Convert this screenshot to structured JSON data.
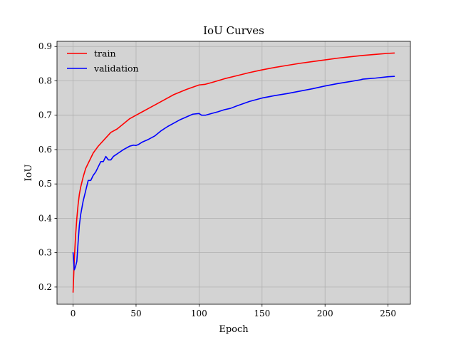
{
  "chart_data": {
    "type": "line",
    "title": "IoU Curves",
    "xlabel": "Epoch",
    "ylabel": "IoU",
    "xlim": [
      -12.75,
      267.75
    ],
    "ylim": [
      0.15,
      0.915
    ],
    "xticks": [
      0,
      50,
      100,
      150,
      200,
      250
    ],
    "xtick_labels": [
      "0",
      "50",
      "100",
      "150",
      "200",
      "250"
    ],
    "yticks": [
      0.2,
      0.3,
      0.4,
      0.5,
      0.6,
      0.7,
      0.8,
      0.9
    ],
    "ytick_labels": [
      "0.2",
      "0.3",
      "0.4",
      "0.5",
      "0.6",
      "0.7",
      "0.8",
      "0.9"
    ],
    "grid": true,
    "background": "#d3d3d3",
    "legend_position": "upper-left",
    "series": [
      {
        "name": "train",
        "color": "#ff0000",
        "x": [
          0,
          1,
          2,
          3,
          4,
          5,
          6,
          8,
          10,
          12,
          14,
          16,
          18,
          20,
          25,
          30,
          35,
          40,
          45,
          50,
          55,
          60,
          70,
          80,
          90,
          100,
          105,
          110,
          120,
          130,
          140,
          150,
          160,
          170,
          180,
          190,
          200,
          210,
          220,
          230,
          240,
          250,
          255
        ],
        "y": [
          0.185,
          0.28,
          0.35,
          0.4,
          0.44,
          0.47,
          0.49,
          0.52,
          0.545,
          0.56,
          0.575,
          0.59,
          0.6,
          0.61,
          0.63,
          0.65,
          0.66,
          0.675,
          0.69,
          0.7,
          0.71,
          0.72,
          0.74,
          0.76,
          0.775,
          0.788,
          0.79,
          0.795,
          0.806,
          0.815,
          0.824,
          0.832,
          0.839,
          0.845,
          0.851,
          0.856,
          0.861,
          0.866,
          0.87,
          0.874,
          0.877,
          0.88,
          0.881
        ]
      },
      {
        "name": "validation",
        "color": "#0000ff",
        "x": [
          0,
          1,
          2,
          3,
          4,
          5,
          6,
          8,
          10,
          12,
          14,
          16,
          18,
          20,
          22,
          24,
          26,
          28,
          30,
          32,
          34,
          36,
          40,
          45,
          48,
          50,
          52,
          55,
          60,
          65,
          70,
          75,
          80,
          85,
          90,
          95,
          100,
          102,
          105,
          110,
          115,
          120,
          125,
          130,
          140,
          150,
          160,
          170,
          180,
          190,
          200,
          210,
          220,
          228,
          230,
          240,
          250,
          255
        ],
        "y": [
          0.3,
          0.25,
          0.26,
          0.275,
          0.33,
          0.38,
          0.41,
          0.45,
          0.48,
          0.51,
          0.51,
          0.525,
          0.535,
          0.55,
          0.565,
          0.565,
          0.58,
          0.57,
          0.57,
          0.58,
          0.585,
          0.59,
          0.6,
          0.61,
          0.613,
          0.612,
          0.615,
          0.622,
          0.63,
          0.64,
          0.655,
          0.667,
          0.677,
          0.687,
          0.695,
          0.703,
          0.705,
          0.7,
          0.7,
          0.705,
          0.71,
          0.716,
          0.72,
          0.727,
          0.74,
          0.75,
          0.757,
          0.763,
          0.77,
          0.777,
          0.785,
          0.792,
          0.798,
          0.803,
          0.805,
          0.808,
          0.812,
          0.813
        ]
      }
    ]
  }
}
